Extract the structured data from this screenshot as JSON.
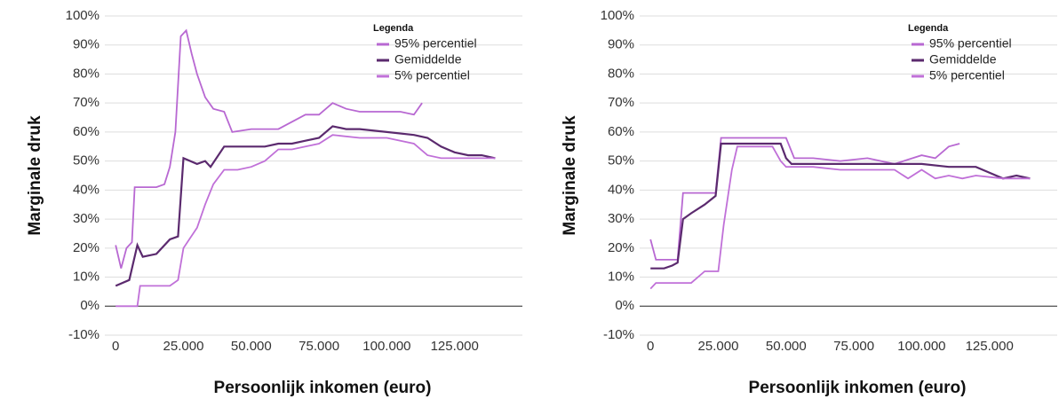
{
  "chart_data": [
    {
      "type": "line",
      "y_label": "Marginale druk",
      "x_label": "Persoonlijk inkomen (euro)",
      "legend_title": "Legenda",
      "legend": "upper right",
      "grid": true,
      "xlim": [
        -4000,
        150000
      ],
      "xticks": [
        0,
        {
          "value": 25000,
          "label": "25.000"
        },
        {
          "value": 50000,
          "label": "50.000"
        },
        {
          "value": 75000,
          "label": "75.000"
        },
        {
          "value": 100000,
          "label": "100.000"
        },
        {
          "value": 125000,
          "label": "125.000"
        }
      ],
      "ylim": [
        -10,
        100
      ],
      "yticks": [
        {
          "value": -10,
          "label": "-10%"
        },
        {
          "value": 0,
          "label": "0%"
        },
        {
          "value": 10,
          "label": "10%"
        },
        {
          "value": 20,
          "label": "20%"
        },
        {
          "value": 30,
          "label": "30%"
        },
        {
          "value": 40,
          "label": "40%"
        },
        {
          "value": 50,
          "label": "50%"
        },
        {
          "value": 60,
          "label": "60%"
        },
        {
          "value": 70,
          "label": "70%"
        },
        {
          "value": 80,
          "label": "80%"
        },
        {
          "value": 90,
          "label": "90%"
        },
        {
          "value": 100,
          "label": "100%"
        }
      ],
      "series": [
        {
          "name": "95% percentiel",
          "color": "#b868d2",
          "x": [
            0,
            2000,
            4000,
            6000,
            7000,
            10000,
            15000,
            18000,
            20000,
            22000,
            24000,
            26000,
            28000,
            30000,
            33000,
            36000,
            40000,
            43000,
            50000,
            60000,
            70000,
            75000,
            80000,
            85000,
            90000,
            95000,
            100000,
            105000,
            110000,
            113000
          ],
          "values": [
            21,
            13,
            20,
            22,
            41,
            41,
            41,
            42,
            48,
            60,
            93,
            95,
            87,
            80,
            72,
            68,
            67,
            60,
            61,
            61,
            66,
            66,
            70,
            68,
            67,
            67,
            67,
            67,
            66,
            70
          ]
        },
        {
          "name": "Gemiddelde",
          "color": "#5b2a6e",
          "x": [
            0,
            5000,
            8000,
            10000,
            15000,
            20000,
            23000,
            25000,
            30000,
            33000,
            35000,
            40000,
            45000,
            50000,
            55000,
            60000,
            65000,
            70000,
            75000,
            80000,
            85000,
            90000,
            100000,
            110000,
            115000,
            120000,
            125000,
            130000,
            135000,
            140000
          ],
          "values": [
            7,
            9,
            21,
            17,
            18,
            23,
            24,
            51,
            49,
            50,
            48,
            55,
            55,
            55,
            55,
            56,
            56,
            57,
            58,
            62,
            61,
            61,
            60,
            59,
            58,
            55,
            53,
            52,
            52,
            51
          ]
        },
        {
          "name": "5% percentiel",
          "color": "#c070d8",
          "x": [
            0,
            5000,
            8000,
            9000,
            15000,
            20000,
            23000,
            25000,
            30000,
            33000,
            36000,
            40000,
            45000,
            50000,
            55000,
            60000,
            65000,
            70000,
            75000,
            80000,
            90000,
            100000,
            110000,
            115000,
            120000,
            130000,
            140000
          ],
          "values": [
            0,
            0,
            0,
            7,
            7,
            7,
            9,
            20,
            27,
            35,
            42,
            47,
            47,
            48,
            50,
            54,
            54,
            55,
            56,
            59,
            58,
            58,
            56,
            52,
            51,
            51,
            51
          ]
        }
      ]
    },
    {
      "type": "line",
      "y_label": "Marginale druk",
      "x_label": "Persoonlijk inkomen (euro)",
      "legend_title": "Legenda",
      "legend": "upper right",
      "grid": true,
      "xlim": [
        -4000,
        150000
      ],
      "xticks": [
        0,
        {
          "value": 25000,
          "label": "25.000"
        },
        {
          "value": 50000,
          "label": "50.000"
        },
        {
          "value": 75000,
          "label": "75.000"
        },
        {
          "value": 100000,
          "label": "100.000"
        },
        {
          "value": 125000,
          "label": "125.000"
        }
      ],
      "ylim": [
        -10,
        100
      ],
      "yticks": [
        {
          "value": -10,
          "label": "-10%"
        },
        {
          "value": 0,
          "label": "0%"
        },
        {
          "value": 10,
          "label": "10%"
        },
        {
          "value": 20,
          "label": "20%"
        },
        {
          "value": 30,
          "label": "30%"
        },
        {
          "value": 40,
          "label": "40%"
        },
        {
          "value": 50,
          "label": "50%"
        },
        {
          "value": 60,
          "label": "60%"
        },
        {
          "value": 70,
          "label": "70%"
        },
        {
          "value": 80,
          "label": "80%"
        },
        {
          "value": 90,
          "label": "90%"
        },
        {
          "value": 100,
          "label": "100%"
        }
      ],
      "series": [
        {
          "name": "95% percentiel",
          "color": "#b868d2",
          "x": [
            0,
            2000,
            10000,
            12000,
            20000,
            24000,
            26000,
            40000,
            50000,
            53000,
            60000,
            70000,
            80000,
            90000,
            100000,
            105000,
            110000,
            114000
          ],
          "values": [
            23,
            16,
            16,
            39,
            39,
            39,
            58,
            58,
            58,
            51,
            51,
            50,
            51,
            49,
            52,
            51,
            55,
            56
          ]
        },
        {
          "name": "Gemiddelde",
          "color": "#5b2a6e",
          "x": [
            0,
            5000,
            8000,
            10000,
            12000,
            15000,
            20000,
            24000,
            26000,
            30000,
            40000,
            48000,
            50000,
            52000,
            60000,
            70000,
            80000,
            90000,
            100000,
            110000,
            115000,
            120000,
            125000,
            130000,
            135000,
            140000
          ],
          "values": [
            13,
            13,
            14,
            15,
            30,
            32,
            35,
            38,
            56,
            56,
            56,
            56,
            51,
            49,
            49,
            49,
            49,
            49,
            49,
            48,
            48,
            48,
            46,
            44,
            45,
            44
          ]
        },
        {
          "name": "5% percentiel",
          "color": "#c070d8",
          "x": [
            0,
            2000,
            10000,
            15000,
            20000,
            25000,
            27000,
            30000,
            32000,
            45000,
            48000,
            50000,
            60000,
            70000,
            80000,
            90000,
            95000,
            100000,
            105000,
            110000,
            115000,
            120000,
            130000,
            140000
          ],
          "values": [
            6,
            8,
            8,
            8,
            12,
            12,
            28,
            47,
            55,
            55,
            50,
            48,
            48,
            47,
            47,
            47,
            44,
            47,
            44,
            45,
            44,
            45,
            44,
            44
          ]
        }
      ]
    }
  ]
}
